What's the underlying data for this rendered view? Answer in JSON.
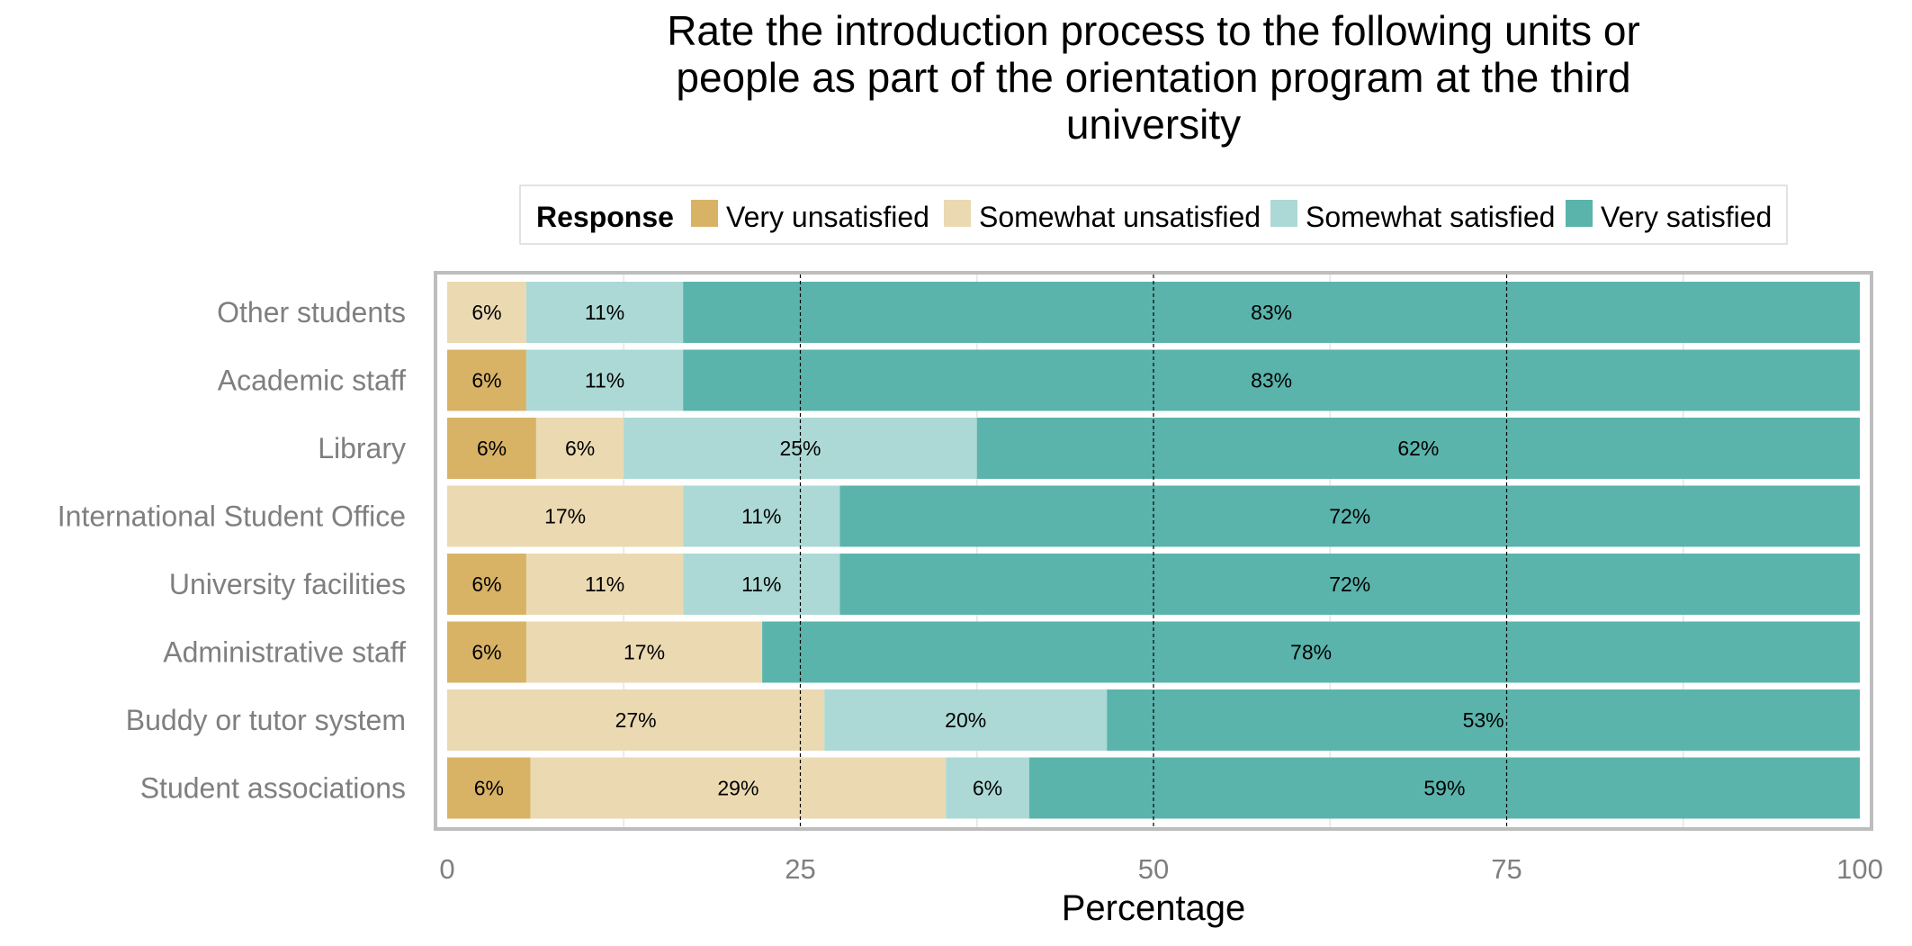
{
  "chart_data": {
    "type": "bar",
    "orientation": "horizontal",
    "stacked": true,
    "title": "Rate the introduction process to the following units or people as part of the orientation program at the third university",
    "title_lines": [
      "Rate the introduction process to the following units or",
      "people as part of the orientation program at the third",
      "university"
    ],
    "xlabel": "Percentage",
    "ylabel": "",
    "xlim": [
      0,
      100
    ],
    "x_ticks": [
      "0",
      "25",
      "50",
      "75",
      "100"
    ],
    "grid": true,
    "legend": {
      "title": "Response",
      "placement": "top"
    },
    "categories": [
      "Other students",
      "Academic staff",
      "Library",
      "International Student Office",
      "University facilities",
      "Administrative staff",
      "Buddy or tutor system",
      "Student associations"
    ],
    "series": [
      {
        "name": "Very unsatisfied",
        "color": "#d8b365",
        "values": [
          0,
          5.6,
          6.3,
          0,
          5.6,
          5.6,
          0,
          5.9
        ],
        "labels": [
          "",
          "6%",
          "6%",
          "",
          "6%",
          "6%",
          "",
          "6%"
        ]
      },
      {
        "name": "Somewhat unsatisfied",
        "color": "#ebd9b2",
        "values": [
          5.6,
          0,
          6.2,
          16.7,
          11.1,
          16.7,
          26.7,
          29.4
        ],
        "labels": [
          "6%",
          "",
          "6%",
          "17%",
          "11%",
          "17%",
          "27%",
          "29%"
        ]
      },
      {
        "name": "Somewhat satisfied",
        "color": "#acd9d5",
        "values": [
          11.1,
          11.1,
          25,
          11.1,
          11.1,
          0,
          20,
          5.9
        ],
        "labels": [
          "11%",
          "11%",
          "25%",
          "11%",
          "11%",
          "",
          "20%",
          "6%"
        ]
      },
      {
        "name": "Very satisfied",
        "color": "#5ab4ac",
        "values": [
          83.3,
          83.3,
          62.5,
          72.2,
          72.2,
          77.7,
          53.3,
          58.8
        ],
        "labels": [
          "83%",
          "83%",
          "62%",
          "72%",
          "72%",
          "78%",
          "53%",
          "59%"
        ]
      }
    ]
  }
}
